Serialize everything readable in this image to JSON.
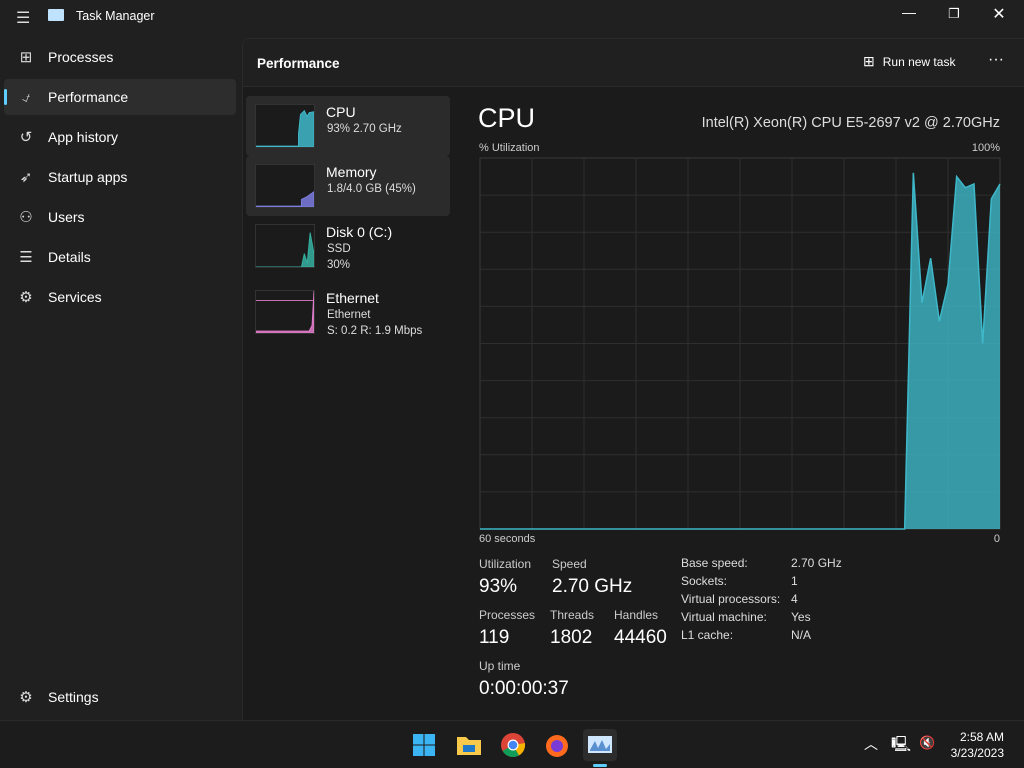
{
  "window": {
    "title": "Task Manager"
  },
  "nav": {
    "items": [
      {
        "label": "Processes",
        "icon": "processes-icon"
      },
      {
        "label": "Performance",
        "icon": "performance-icon",
        "selected": true
      },
      {
        "label": "App history",
        "icon": "history-icon"
      },
      {
        "label": "Startup apps",
        "icon": "startup-icon"
      },
      {
        "label": "Users",
        "icon": "users-icon"
      },
      {
        "label": "Details",
        "icon": "details-icon"
      },
      {
        "label": "Services",
        "icon": "services-icon"
      }
    ],
    "settings": "Settings"
  },
  "header": {
    "title": "Performance",
    "run_new_task": "Run new task"
  },
  "devices": [
    {
      "name": "CPU",
      "line1": "93%  2.70 GHz",
      "color": "#3eb8c9"
    },
    {
      "name": "Memory",
      "line1": "1.8/4.0 GB (45%)",
      "color": "#7b7de0"
    },
    {
      "name": "Disk 0 (C:)",
      "line1": "SSD",
      "line2": "30%",
      "color": "#35b0a0"
    },
    {
      "name": "Ethernet",
      "line1": "Ethernet",
      "line2": "S: 0.2  R: 1.9 Mbps",
      "color": "#e27ccb"
    }
  ],
  "detail": {
    "title": "CPU",
    "model": "Intel(R) Xeon(R) CPU E5-2697 v2 @ 2.70GHz",
    "stats": {
      "utilization_label": "Utilization",
      "utilization": "93%",
      "speed_label": "Speed",
      "speed": "2.70 GHz",
      "processes_label": "Processes",
      "processes": "119",
      "threads_label": "Threads",
      "threads": "1802",
      "handles_label": "Handles",
      "handles": "44460",
      "uptime_label": "Up time",
      "uptime": "0:00:00:37"
    },
    "specs": [
      {
        "k": "Base speed:",
        "v": "2.70 GHz"
      },
      {
        "k": "Sockets:",
        "v": "1"
      },
      {
        "k": "Virtual processors:",
        "v": "4"
      },
      {
        "k": "Virtual machine:",
        "v": "Yes"
      },
      {
        "k": "L1 cache:",
        "v": "N/A"
      }
    ]
  },
  "chart_data": {
    "type": "area",
    "ylabel": "% Utilization",
    "ymax_label": "100%",
    "xlabel_left": "60 seconds",
    "xlabel_right": "0",
    "ylim": [
      0,
      100
    ],
    "xlim": [
      60,
      0
    ],
    "grid": true,
    "color": "#3eb8c9",
    "values": [
      0,
      0,
      0,
      0,
      0,
      0,
      0,
      0,
      0,
      0,
      0,
      0,
      0,
      0,
      0,
      0,
      0,
      0,
      0,
      0,
      0,
      0,
      0,
      0,
      0,
      0,
      0,
      0,
      0,
      0,
      0,
      0,
      0,
      0,
      0,
      0,
      0,
      0,
      0,
      0,
      0,
      0,
      0,
      0,
      0,
      0,
      0,
      0,
      0,
      0,
      96,
      61,
      73,
      56,
      66,
      95,
      92,
      93,
      50,
      89,
      93
    ]
  },
  "taskbar": {
    "apps": [
      "start-icon",
      "file-explorer-icon",
      "chrome-icon",
      "firefox-icon",
      "task-manager-icon"
    ],
    "time": "2:58 AM",
    "date": "3/23/2023"
  }
}
